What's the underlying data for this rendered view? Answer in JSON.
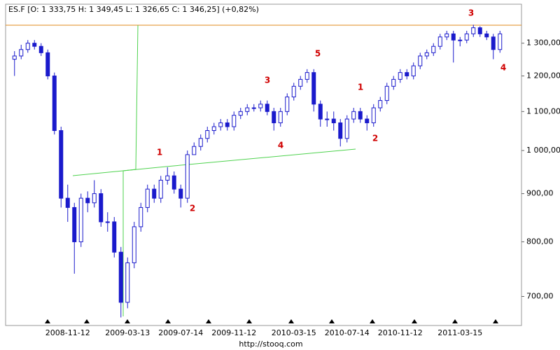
{
  "chart_data": {
    "type": "candlestick",
    "title": "ES.F [O: 1 333,75  H: 1 349,45  L: 1 326,65  C: 1 346,25] (+0,82%)",
    "source": "http://stooq.com",
    "categories": [
      null,
      null,
      null,
      null,
      null,
      null,
      null,
      null,
      "2008-11-12",
      null,
      null,
      null,
      null,
      null,
      null,
      null,
      null,
      "2009-03-13",
      null,
      null,
      null,
      null,
      null,
      null,
      null,
      "2009-07-14",
      null,
      null,
      null,
      null,
      null,
      null,
      null,
      "2009-11-12",
      null,
      null,
      null,
      null,
      null,
      null,
      null,
      null,
      "2010-03-15",
      null,
      null,
      null,
      null,
      null,
      null,
      null,
      "2010-07-14",
      null,
      null,
      null,
      null,
      null,
      null,
      null,
      "2010-11-12",
      null,
      null,
      null,
      null,
      null,
      null,
      null,
      null,
      "2011-03-15",
      null,
      null,
      null,
      null,
      null,
      null
    ],
    "open": [
      1250,
      1260,
      1280,
      1300,
      1290,
      1270,
      1200,
      1050,
      890,
      870,
      800,
      890,
      880,
      900,
      840,
      840,
      780,
      690,
      760,
      830,
      870,
      910,
      890,
      930,
      940,
      910,
      890,
      990,
      1010,
      1030,
      1050,
      1060,
      1070,
      1060,
      1090,
      1100,
      1110,
      1110,
      1120,
      1100,
      1070,
      1100,
      1140,
      1170,
      1190,
      1210,
      1120,
      1080,
      1080,
      1070,
      1030,
      1080,
      1100,
      1080,
      1070,
      1110,
      1130,
      1170,
      1190,
      1210,
      1200,
      1230,
      1260,
      1270,
      1290,
      1320,
      1330,
      1310,
      1310,
      1330,
      1350,
      1330,
      1320,
      1280
    ],
    "high": [
      1275,
      1295,
      1310,
      1310,
      1300,
      1280,
      1210,
      1060,
      920,
      880,
      900,
      905,
      930,
      910,
      860,
      850,
      790,
      770,
      840,
      880,
      920,
      920,
      940,
      960,
      950,
      920,
      1000,
      1020,
      1040,
      1060,
      1070,
      1080,
      1080,
      1100,
      1110,
      1120,
      1120,
      1130,
      1130,
      1110,
      1110,
      1150,
      1180,
      1200,
      1220,
      1220,
      1130,
      1100,
      1100,
      1080,
      1090,
      1110,
      1110,
      1090,
      1120,
      1140,
      1180,
      1200,
      1220,
      1220,
      1240,
      1270,
      1280,
      1300,
      1330,
      1340,
      1340,
      1320,
      1340,
      1360,
      1355,
      1340,
      1330,
      1340
    ],
    "low": [
      1200,
      1250,
      1270,
      1280,
      1260,
      1190,
      1040,
      870,
      840,
      740,
      790,
      860,
      870,
      830,
      820,
      770,
      665,
      680,
      750,
      820,
      860,
      880,
      880,
      920,
      900,
      870,
      880,
      990,
      1000,
      1020,
      1040,
      1050,
      1050,
      1050,
      1080,
      1090,
      1100,
      1100,
      1090,
      1050,
      1060,
      1090,
      1130,
      1160,
      1180,
      1100,
      1060,
      1060,
      1050,
      1010,
      1020,
      1070,
      1070,
      1050,
      1060,
      1100,
      1120,
      1160,
      1180,
      1190,
      1190,
      1220,
      1250,
      1260,
      1280,
      1310,
      1240,
      1290,
      1300,
      1320,
      1320,
      1310,
      1250,
      1270
    ],
    "close": [
      1260,
      1280,
      1300,
      1290,
      1270,
      1200,
      1050,
      890,
      870,
      800,
      890,
      880,
      900,
      840,
      840,
      780,
      690,
      760,
      830,
      870,
      910,
      890,
      930,
      940,
      910,
      890,
      990,
      1010,
      1030,
      1050,
      1060,
      1070,
      1060,
      1090,
      1100,
      1110,
      1110,
      1120,
      1100,
      1070,
      1100,
      1140,
      1170,
      1190,
      1210,
      1120,
      1080,
      1080,
      1070,
      1030,
      1080,
      1100,
      1080,
      1070,
      1110,
      1130,
      1170,
      1190,
      1210,
      1200,
      1230,
      1260,
      1270,
      1290,
      1320,
      1330,
      1310,
      1310,
      1330,
      1350,
      1330,
      1320,
      1280,
      1330
    ],
    "up_color": "#ffffff",
    "down_color": "#1a1acc",
    "ylim": [
      652,
      1430
    ],
    "log_scale": true,
    "yticks": [
      {
        "value": 700,
        "label": "700,00"
      },
      {
        "value": 800,
        "label": "800,00"
      },
      {
        "value": 900,
        "label": "900,00"
      },
      {
        "value": 1000,
        "label": "1 000,00"
      },
      {
        "value": 1100,
        "label": "1 100,00"
      },
      {
        "value": 1200,
        "label": "1 200,00"
      },
      {
        "value": 1300,
        "label": "1 300,00"
      }
    ],
    "annotations": [
      "3",
      "5",
      "3",
      "1",
      "1",
      "4",
      "2",
      "2",
      "4"
    ]
  }
}
